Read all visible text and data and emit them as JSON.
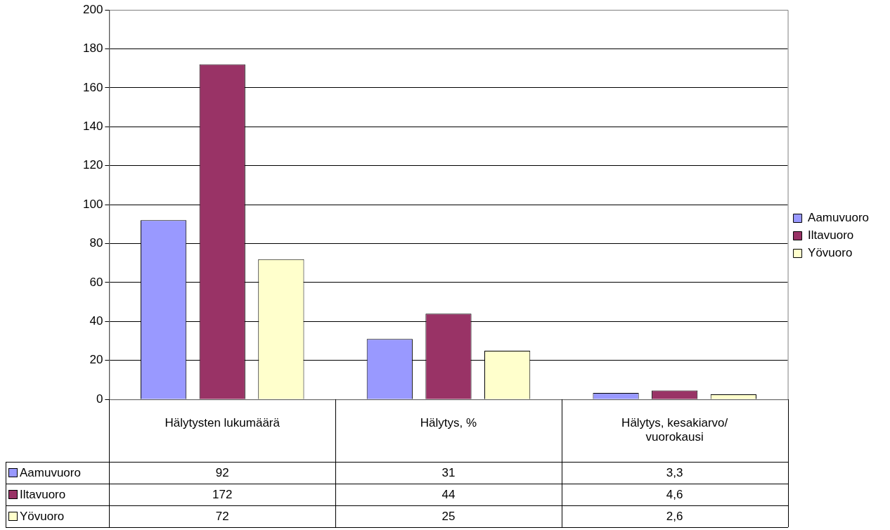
{
  "chart_data": {
    "type": "bar",
    "categories": [
      "Hälytysten lukumäärä",
      "Hälytys, %",
      "Hälytys, kesakiarvo/ vuorokausi"
    ],
    "series": [
      {
        "name": "Aamuvuoro",
        "color": "#9999ff",
        "values": [
          92,
          31,
          3.3
        ],
        "value_labels": [
          "92",
          "31",
          "3,3"
        ]
      },
      {
        "name": "Iltavuoro",
        "color": "#993366",
        "values": [
          172,
          44,
          4.6
        ],
        "value_labels": [
          "172",
          "44",
          "4,6"
        ]
      },
      {
        "name": "Yövuoro",
        "color": "#ffffcc",
        "values": [
          72,
          25,
          2.6
        ],
        "value_labels": [
          "72",
          "25",
          "2,6"
        ]
      }
    ],
    "ylim": [
      0,
      200
    ],
    "yticks": [
      0,
      20,
      40,
      60,
      80,
      100,
      120,
      140,
      160,
      180,
      200
    ],
    "grid": "y",
    "legend": "right"
  }
}
